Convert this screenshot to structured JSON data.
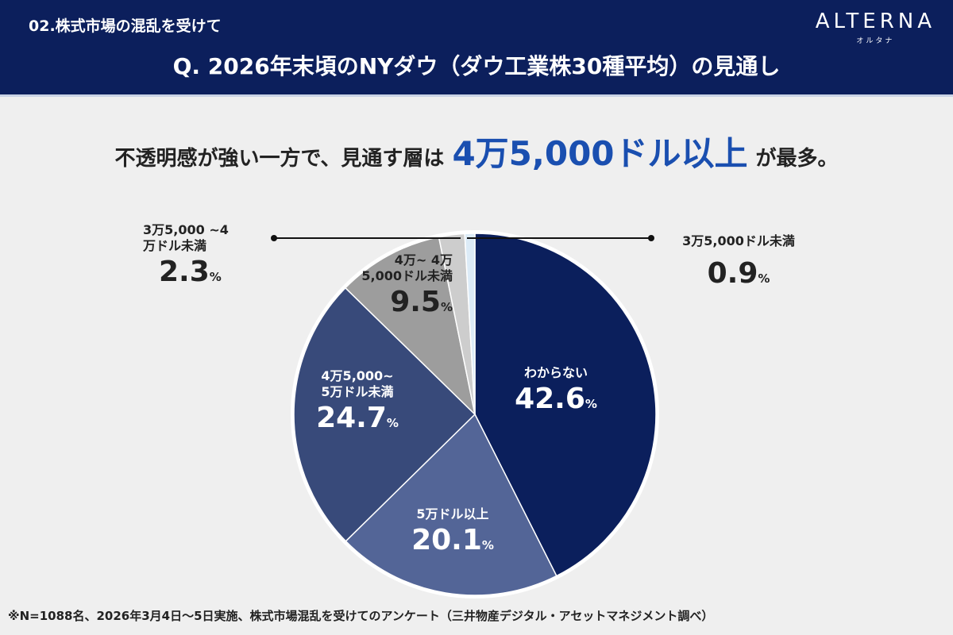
{
  "header": {
    "section": "02.株式市場の混乱を受けて",
    "question": "Q. 2026年末頃のNYダウ（ダウ工業株30種平均）の見通し",
    "logo": "ALTERNA",
    "logo_kana": "オルタナ"
  },
  "headline": {
    "before": "不透明感が強い一方で、見通す層は",
    "highlight": "4万5,000ドル以上",
    "after": "が最多。"
  },
  "chart_data": {
    "type": "pie",
    "unit": "%",
    "slices": [
      {
        "label": "わからない",
        "value": 42.6,
        "color": "#0b1f5c"
      },
      {
        "label": "5万ドル以上",
        "value": 20.1,
        "color": "#536597"
      },
      {
        "label": "4万5,000~ 5万ドル未満",
        "value": 24.7,
        "color": "#384a7a"
      },
      {
        "label": "4万~ 4万5,000ドル未満",
        "value": 9.5,
        "color": "#9d9d9d"
      },
      {
        "label": "3万5,000 ~4万ドル未満",
        "value": 2.3,
        "color": "#cdcdcd"
      },
      {
        "label": "3万5,000ドル未満",
        "value": 0.9,
        "color": "#dcebf7"
      }
    ]
  },
  "footnote": "※N=1088名、2026年3月4日〜5日実施、株式市場混乱を受けてのアンケート（三井物産デジタル・アセットマネジメント調べ）"
}
